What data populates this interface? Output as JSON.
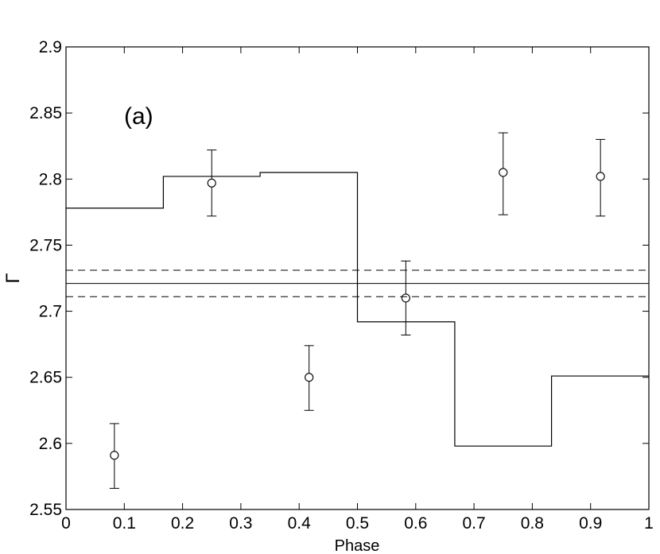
{
  "chart_data": {
    "type": "scatter",
    "title": "",
    "xlabel": "Phase",
    "ylabel": "Γ",
    "xlim": [
      0,
      1
    ],
    "ylim": [
      2.55,
      2.9
    ],
    "xticks": [
      0,
      0.1,
      0.2,
      0.3,
      0.4,
      0.5,
      0.6,
      0.7,
      0.8,
      0.9,
      1
    ],
    "xtick_labels": [
      "0",
      "0.1",
      "0.2",
      "0.3",
      "0.4",
      "0.5",
      "0.6",
      "0.7",
      "0.8",
      "0.9",
      "1"
    ],
    "yticks": [
      2.55,
      2.6,
      2.65,
      2.7,
      2.75,
      2.8,
      2.85,
      2.9
    ],
    "ytick_labels": [
      "2.55",
      "2.6",
      "2.65",
      "2.7",
      "2.75",
      "2.8",
      "2.85",
      "2.9"
    ],
    "grid": false,
    "annotation": "(a)",
    "series": [
      {
        "type": "errorbar",
        "marker": "open-circle",
        "points": [
          {
            "x": 0.083,
            "y": 2.591,
            "ylow": 2.566,
            "yhigh": 2.615
          },
          {
            "x": 0.25,
            "y": 2.797,
            "ylow": 2.772,
            "yhigh": 2.822
          },
          {
            "x": 0.417,
            "y": 2.65,
            "ylow": 2.625,
            "yhigh": 2.674
          },
          {
            "x": 0.583,
            "y": 2.71,
            "ylow": 2.682,
            "yhigh": 2.738
          },
          {
            "x": 0.75,
            "y": 2.805,
            "ylow": 2.773,
            "yhigh": 2.835
          },
          {
            "x": 0.917,
            "y": 2.802,
            "ylow": 2.772,
            "yhigh": 2.83
          }
        ]
      },
      {
        "type": "step",
        "steps": [
          {
            "x0": 0,
            "x1": 0.167,
            "y": 2.778
          },
          {
            "x0": 0.167,
            "x1": 0.333,
            "y": 2.802
          },
          {
            "x0": 0.333,
            "x1": 0.5,
            "y": 2.805
          },
          {
            "x0": 0.5,
            "x1": 0.667,
            "y": 2.692
          },
          {
            "x0": 0.667,
            "x1": 0.833,
            "y": 2.598
          },
          {
            "x0": 0.833,
            "x1": 1,
            "y": 2.651
          }
        ]
      },
      {
        "type": "hline",
        "style": "solid",
        "y": 2.721
      },
      {
        "type": "hline",
        "style": "dashed",
        "y": 2.731
      },
      {
        "type": "hline",
        "style": "dashed",
        "y": 2.711
      }
    ]
  }
}
